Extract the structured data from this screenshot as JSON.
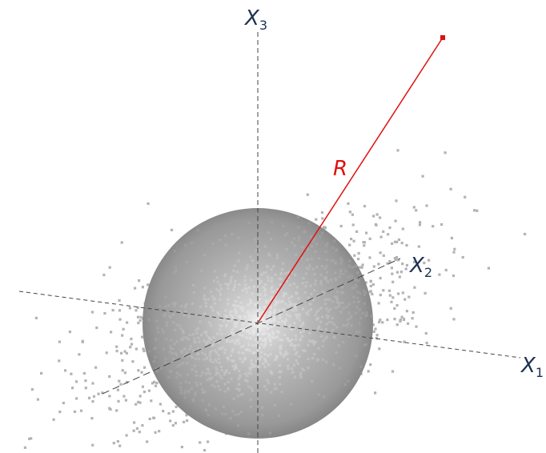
{
  "labels": {
    "x1": {
      "base": "X",
      "sub": "1"
    },
    "x2": {
      "base": "X",
      "sub": "2"
    },
    "x3": {
      "base": "X",
      "sub": "3"
    },
    "radius": "R"
  },
  "colors": {
    "axis": "#444444",
    "axis_label": "#1e3152",
    "radius": "#e01010",
    "points": "#b3b3b3",
    "sphere_highlight": "#f2f2f2",
    "sphere_shadow": "#6e6e6e"
  }
}
